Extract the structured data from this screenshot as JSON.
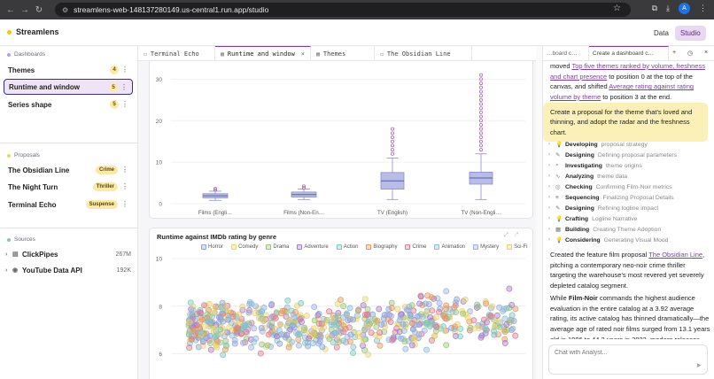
{
  "browser": {
    "url": "streamlens-web-148137280149.us-central1.run.app/studio",
    "avatar_letter": "A"
  },
  "app": {
    "brand": "Streamlens",
    "data_label": "Data",
    "studio_label": "Studio"
  },
  "sidebar": {
    "dashboards_header": "Dashboards",
    "dashboards": [
      {
        "label": "Themes",
        "count": "4"
      },
      {
        "label": "Runtime and window",
        "count": "5"
      },
      {
        "label": "Series shape",
        "count": "5"
      }
    ],
    "proposals_header": "Proposals",
    "proposals": [
      {
        "label": "The Obsidian Line",
        "genre": "Crime"
      },
      {
        "label": "The Night Turn",
        "genre": "Thriller"
      },
      {
        "label": "Terminal Echo",
        "genre": "Suspense"
      }
    ],
    "sources_header": "Sources",
    "sources": [
      {
        "label": "ClickPipes",
        "size": "267M"
      },
      {
        "label": "YouTube Data API",
        "size": "192K"
      }
    ]
  },
  "tabs": [
    {
      "label": "Terminal Echo"
    },
    {
      "label": "Runtime and window"
    },
    {
      "label": "Themes"
    },
    {
      "label": "The Obsidian Line"
    }
  ],
  "chart_data": [
    {
      "type": "box",
      "title": "",
      "categories": [
        "Films (Engli…",
        "Films (Non-En…",
        "TV (English)",
        "TV (Non-Engli…"
      ],
      "yticks": [
        0,
        10,
        20,
        30
      ],
      "ylim": [
        0,
        32
      ],
      "boxes": [
        {
          "q1": 1.4,
          "median": 1.9,
          "q3": 2.4,
          "whislo": 0.8,
          "whishi": 3.0,
          "outliers": [
            3.3,
            3.6
          ]
        },
        {
          "q1": 1.6,
          "median": 2.2,
          "q3": 2.8,
          "whislo": 1.0,
          "whishi": 3.5,
          "outliers": [
            3.8,
            4.2
          ]
        },
        {
          "q1": 3.5,
          "median": 5.5,
          "q3": 7.5,
          "whislo": 1.0,
          "whishi": 11,
          "outliers": [
            12,
            13,
            14,
            15,
            16,
            17,
            18
          ]
        },
        {
          "q1": 4.7,
          "median": 6.2,
          "q3": 7.6,
          "whislo": 1.0,
          "whishi": 12,
          "outliers": [
            13,
            14,
            15,
            16,
            17,
            18,
            19,
            20,
            21,
            22,
            23,
            24,
            25,
            26,
            27,
            28,
            29,
            30,
            31
          ]
        }
      ]
    },
    {
      "type": "scatter",
      "title": "Runtime against IMDb rating by genre",
      "yticks": [
        6,
        8,
        10
      ],
      "ylim": [
        4.5,
        10
      ],
      "legend": [
        {
          "name": "Horror",
          "color": "#8ea4d6"
        },
        {
          "name": "Comedy",
          "color": "#e9d56b"
        },
        {
          "name": "Drama",
          "color": "#9bc47a"
        },
        {
          "name": "Adventure",
          "color": "#a67cc9"
        },
        {
          "name": "Action",
          "color": "#7fc6bf"
        },
        {
          "name": "Biography",
          "color": "#e39a5e"
        },
        {
          "name": "Crime",
          "color": "#d87e8d"
        },
        {
          "name": "Animation",
          "color": "#8fbcd6"
        },
        {
          "name": "Mystery",
          "color": "#9fb0e0"
        },
        {
          "name": "Sci-Fi",
          "color": "#e6d27a"
        }
      ]
    }
  ],
  "chat": {
    "intro_text": "moved ",
    "intro_link1": "Top five themes ranked by volume, freshness and chart presence",
    "intro_mid": " to position 0 at the top of the canvas, and shifted ",
    "intro_link2": "Average rating against rating volume by theme",
    "intro_end": " to position 3 at the end.",
    "user_message": "Create a proposal for the theme that's loved and thinning, and adopt the radar and the freshness chart.",
    "steps": [
      {
        "bold": "Developing",
        "detail": "proposal strategy",
        "icon": "💡"
      },
      {
        "bold": "Designing",
        "detail": "Defining proposal parameters",
        "icon": "✎"
      },
      {
        "bold": "Investigating",
        "detail": "theme origins",
        "icon": "⌕"
      },
      {
        "bold": "Analyzing",
        "detail": "theme data",
        "icon": "∿"
      },
      {
        "bold": "Checking",
        "detail": "Confirming Film-Noir metrics",
        "icon": "◎"
      },
      {
        "bold": "Sequencing",
        "detail": "Finalizing Proposal Details",
        "icon": "≡"
      },
      {
        "bold": "Designing",
        "detail": "Refining logline impact",
        "icon": "✎"
      },
      {
        "bold": "Crafting",
        "detail": "Logline Narrative",
        "icon": "💡"
      },
      {
        "bold": "Building",
        "detail": "Creating Theme Adoption",
        "icon": "▦"
      },
      {
        "bold": "Considering",
        "detail": "Generating Visual Mood",
        "icon": "💡"
      }
    ],
    "para1_a": "Created the feature film proposal ",
    "para1_link": "The Obsidian Line",
    "para1_b": ", pitching a contemporary neo-noir crime thriller targeting the warehouse's most revered yet severely depleted catalog segment.",
    "para2_a": "While ",
    "para2_bold": "Film-Noir",
    "para2_b": " commands the highest audience evaluation in the entire catalog at a 3.92 average rating, its active catalog has thinned dramatically—the average age of rated noir films surged from 13.1 years old in 1996 to 44.2 years in 2023, modern releases",
    "input_placeholder": "Chat with Analyst...",
    "rtab1": "…board c…",
    "rtab2": "Create a dashboard c…"
  }
}
